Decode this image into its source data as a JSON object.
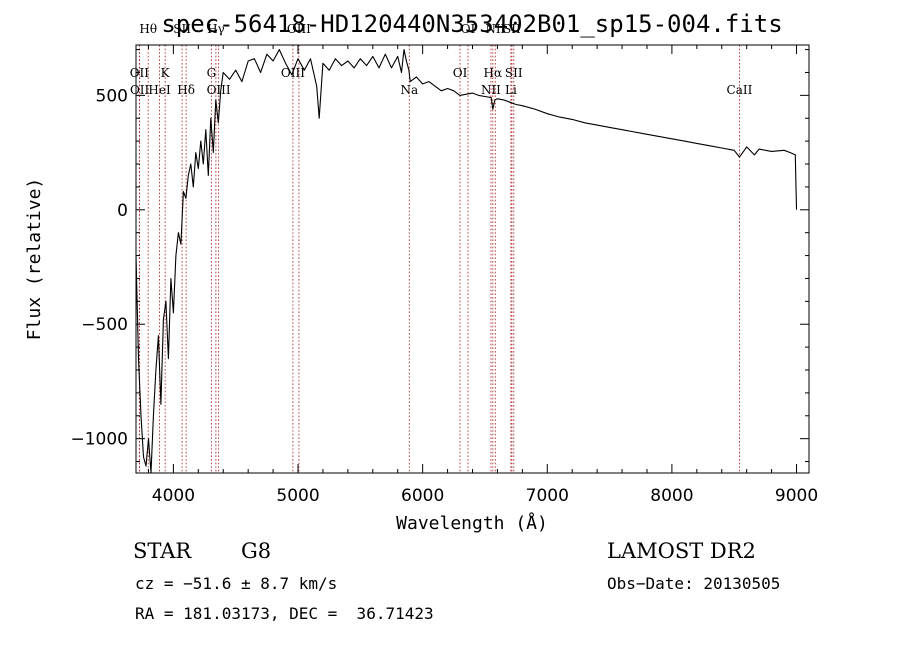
{
  "chart_data": {
    "type": "line",
    "title": "spec-56418-HD120440N353402B01_sp15-004.fits",
    "xlabel": "Wavelength (Å)",
    "ylabel": "Flux (relative)",
    "xlim": [
      3700,
      9100
    ],
    "ylim": [
      -1150,
      720
    ],
    "xticks": [
      4000,
      5000,
      6000,
      7000,
      8000,
      9000
    ],
    "yticks": [
      -1000,
      -500,
      0,
      500
    ],
    "xtick_labels": [
      "4000",
      "5000",
      "6000",
      "7000",
      "8000",
      "9000"
    ],
    "ytick_labels": [
      "−1000",
      "−500",
      "0",
      "500"
    ],
    "series": [
      {
        "name": "flux",
        "x": [
          3700,
          3720,
          3740,
          3760,
          3780,
          3800,
          3820,
          3840,
          3860,
          3880,
          3900,
          3920,
          3940,
          3960,
          3980,
          4000,
          4020,
          4040,
          4060,
          4080,
          4100,
          4120,
          4140,
          4160,
          4180,
          4200,
          4220,
          4240,
          4260,
          4280,
          4300,
          4320,
          4340,
          4360,
          4380,
          4400,
          4450,
          4500,
          4550,
          4600,
          4650,
          4700,
          4750,
          4800,
          4850,
          4900,
          4950,
          5000,
          5050,
          5100,
          5150,
          5170,
          5200,
          5250,
          5300,
          5350,
          5400,
          5450,
          5500,
          5550,
          5600,
          5650,
          5700,
          5750,
          5800,
          5830,
          5850,
          5870,
          5890,
          5900,
          5950,
          6000,
          6050,
          6100,
          6150,
          6200,
          6250,
          6300,
          6350,
          6400,
          6450,
          6500,
          6550,
          6563,
          6580,
          6600,
          6650,
          6700,
          6750,
          6800,
          6900,
          7000,
          7100,
          7200,
          7300,
          7400,
          7500,
          7600,
          7700,
          7800,
          7900,
          8000,
          8100,
          8200,
          8300,
          8400,
          8500,
          8542,
          8600,
          8662,
          8700,
          8800,
          8900,
          8950,
          8990,
          9000
        ],
        "y": [
          -200,
          -650,
          -900,
          -1080,
          -1120,
          -1000,
          -1150,
          -900,
          -700,
          -550,
          -850,
          -480,
          -400,
          -650,
          -300,
          -450,
          -200,
          -100,
          -150,
          80,
          50,
          150,
          200,
          100,
          250,
          180,
          300,
          200,
          350,
          150,
          400,
          250,
          480,
          380,
          520,
          600,
          570,
          610,
          560,
          650,
          660,
          600,
          680,
          650,
          700,
          640,
          590,
          660,
          610,
          660,
          540,
          400,
          640,
          610,
          660,
          630,
          650,
          620,
          660,
          630,
          670,
          620,
          680,
          620,
          670,
          600,
          700,
          650,
          610,
          560,
          580,
          550,
          560,
          540,
          520,
          530,
          520,
          500,
          505,
          510,
          500,
          495,
          490,
          440,
          480,
          485,
          480,
          470,
          460,
          455,
          440,
          420,
          405,
          395,
          380,
          370,
          360,
          350,
          340,
          330,
          320,
          310,
          300,
          290,
          280,
          270,
          260,
          230,
          275,
          240,
          265,
          255,
          260,
          250,
          240,
          0
        ]
      }
    ],
    "spectral_lines": [
      {
        "label": "Hθ",
        "x": 3798,
        "row": 1
      },
      {
        "label": "OII",
        "x": 3727,
        "row": 2
      },
      {
        "label": "OII",
        "x": 3729,
        "row": 3
      },
      {
        "label": "K",
        "x": 3934,
        "row": 2
      },
      {
        "label": "HeI",
        "x": 3889,
        "row": 3
      },
      {
        "label": "SII",
        "x": 4070,
        "row": 1
      },
      {
        "label": "Hδ",
        "x": 4102,
        "row": 3
      },
      {
        "label": "Hγ",
        "x": 4341,
        "row": 1
      },
      {
        "label": "G",
        "x": 4305,
        "row": 2
      },
      {
        "label": "OIII",
        "x": 4363,
        "row": 3
      },
      {
        "label": "OIII",
        "x": 5007,
        "row": 1
      },
      {
        "label": "OIII",
        "x": 4959,
        "row": 2
      },
      {
        "label": "Na",
        "x": 5893,
        "row": 3
      },
      {
        "label": "OI",
        "x": 6364,
        "row": 1
      },
      {
        "label": "OI",
        "x": 6300,
        "row": 2
      },
      {
        "label": "NII",
        "x": 6583,
        "row": 1
      },
      {
        "label": "Hα",
        "x": 6563,
        "row": 2
      },
      {
        "label": "NII",
        "x": 6548,
        "row": 3
      },
      {
        "label": "SII",
        "x": 6716,
        "row": 1
      },
      {
        "label": "SII",
        "x": 6731,
        "row": 2
      },
      {
        "label": "Li",
        "x": 6708,
        "row": 3
      },
      {
        "label": "CaII",
        "x": 8542,
        "row": 3
      }
    ]
  },
  "info": {
    "object_type": "STAR",
    "subclass": "G8",
    "cz": "cz = −51.6 ± 8.7 km/s",
    "coords": "RA = 181.03173, DEC =  36.71423",
    "survey": "LAMOST DR2",
    "obs_date": "Obs−Date: 20130505"
  }
}
